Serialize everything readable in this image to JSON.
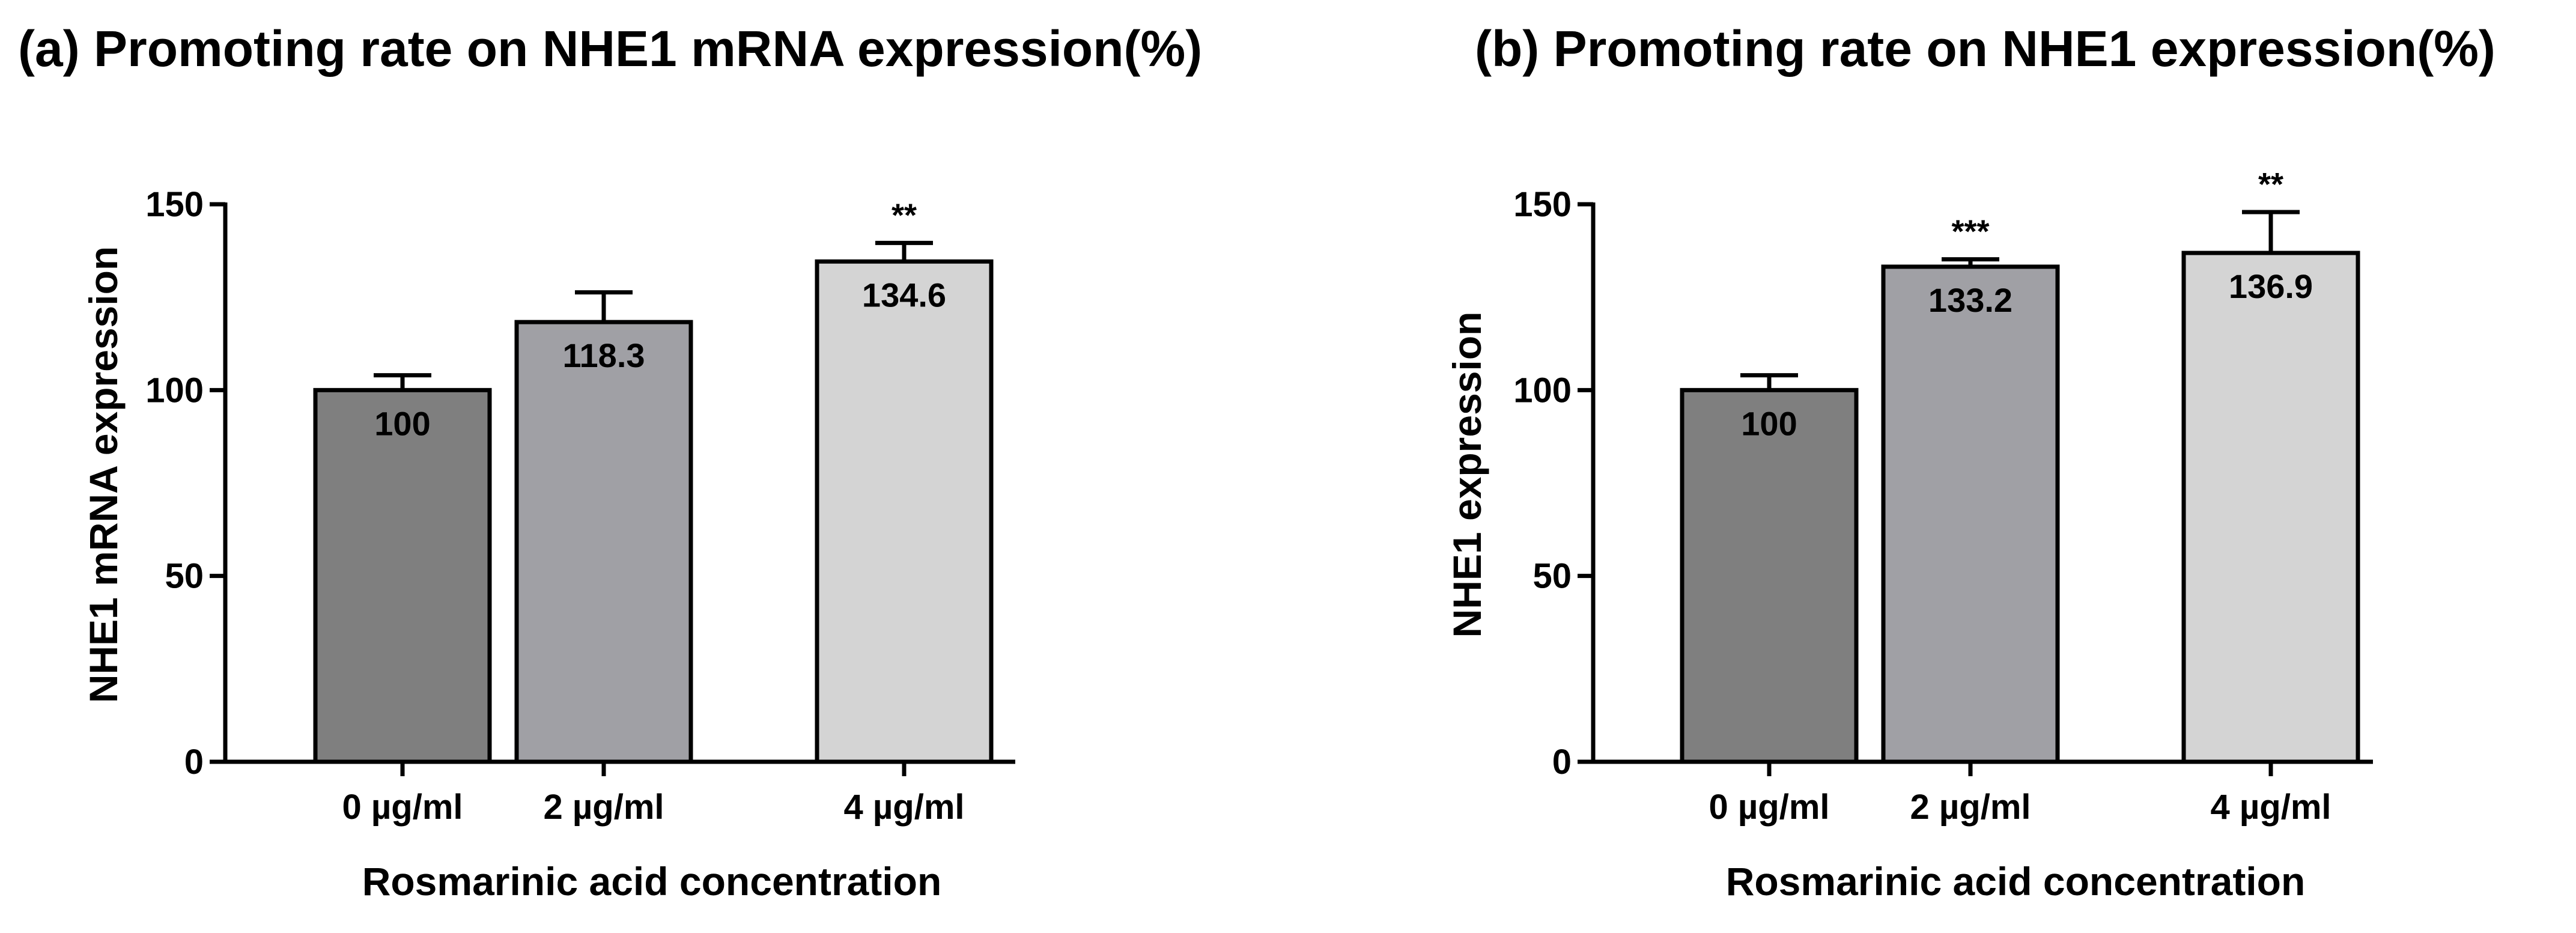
{
  "chart_data": [
    {
      "type": "bar",
      "title": "(a) Promoting rate on NHE1 mRNA expression(%)",
      "xlabel": "Rosmarinic acid concentration",
      "ylabel": "NHE1 mRNA expression",
      "ylim": [
        0,
        150
      ],
      "yticks": [
        0,
        50,
        100,
        150
      ],
      "categories": [
        "0 µg/ml",
        "2 µg/ml",
        "4 µg/ml"
      ],
      "values": [
        100,
        118.3,
        134.6
      ],
      "value_labels": [
        "100",
        "118.3",
        "134.6"
      ],
      "errors": [
        4,
        8,
        5
      ],
      "significance": [
        "",
        "",
        "**"
      ],
      "colors": [
        "#7f7f7f",
        "#a0a0a5",
        "#d4d4d4"
      ]
    },
    {
      "type": "bar",
      "title": "(b) Promoting rate on NHE1 expression(%)",
      "xlabel": "Rosmarinic acid concentration",
      "ylabel": "NHE1 expression",
      "ylim": [
        0,
        150
      ],
      "yticks": [
        0,
        50,
        100,
        150
      ],
      "categories": [
        "0 µg/ml",
        "2 µg/ml",
        "4 µg/ml"
      ],
      "values": [
        100,
        133.2,
        136.9
      ],
      "value_labels": [
        "100",
        "133.2",
        "136.9"
      ],
      "errors": [
        4,
        2,
        11
      ],
      "significance": [
        "",
        "***",
        "**"
      ],
      "colors": [
        "#7f7f7f",
        "#a0a0a5",
        "#d4d4d4"
      ]
    }
  ]
}
